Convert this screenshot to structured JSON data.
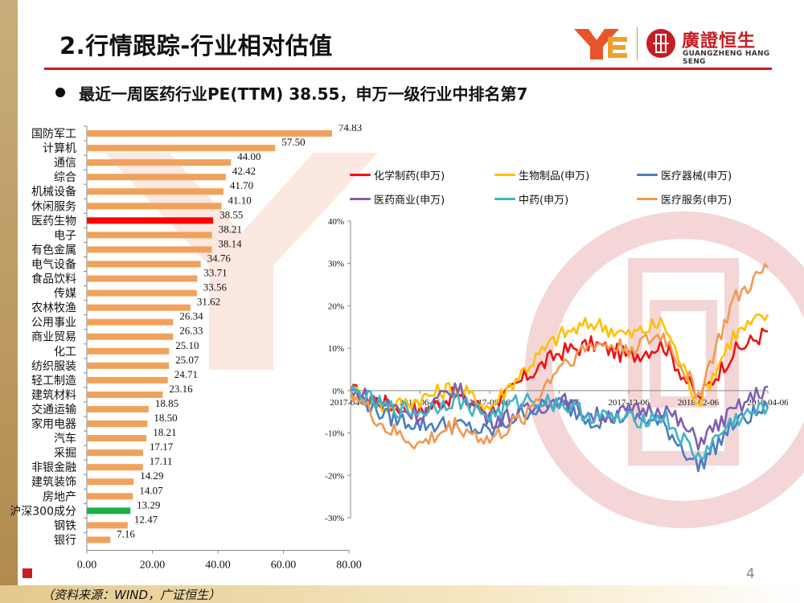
{
  "header": {
    "title": "2.行情跟踪-行业相对估值",
    "brand_cn": "廣證恒生",
    "brand_en": "GUANGZHENG HANG SENG",
    "subtitle": "最近一周医药行业PE(TTM) 38.55，申万一级行业中排名第7"
  },
  "footer": {
    "source": "（资料来源：WIND，广证恒生）",
    "page_number": "4"
  },
  "colors": {
    "accent_red": "#c81c23",
    "bar_default": "#f0a25c",
    "bar_highlight": "#ff0000",
    "bar_benchmark": "#1fae48"
  },
  "chart_data": [
    {
      "type": "bar",
      "orientation": "horizontal",
      "categories": [
        "国防军工",
        "计算机",
        "通信",
        "综合",
        "机械设备",
        "休闲服务",
        "医药生物",
        "电子",
        "有色金属",
        "电气设备",
        "食品饮料",
        "传媒",
        "农林牧渔",
        "公用事业",
        "商业贸易",
        "化工",
        "纺织服装",
        "轻工制造",
        "建筑材料",
        "交通运输",
        "家用电器",
        "汽车",
        "采掘",
        "非银金融",
        "建筑装饰",
        "房地产",
        "沪深300成分",
        "钢铁",
        "银行"
      ],
      "values": [
        74.83,
        57.5,
        44.0,
        42.42,
        41.7,
        41.1,
        38.55,
        38.21,
        38.14,
        34.76,
        33.71,
        33.56,
        31.62,
        26.34,
        26.33,
        25.1,
        25.07,
        24.71,
        23.16,
        18.85,
        18.5,
        18.21,
        17.17,
        17.11,
        14.29,
        14.07,
        13.29,
        12.47,
        7.16
      ],
      "value_labels": [
        "74.83",
        "57.50",
        "44.00",
        "42.42",
        "41.70",
        "41.10",
        "38.55",
        "38.21",
        "38.14",
        "34.76",
        "33.71",
        "33.56",
        "31.62",
        "26.34",
        "26.33",
        "25.10",
        "25.07",
        "24.71",
        "23.16",
        "18.85",
        "18.50",
        "18.21",
        "17.17",
        "17.11",
        "14.29",
        "14.07",
        "13.29",
        "12.47",
        "7.16"
      ],
      "highlight": {
        "医药生物": "red",
        "沪深300成分": "green"
      },
      "xlim": [
        0,
        80
      ],
      "xticks": [
        "0.00",
        "20.00",
        "40.00",
        "60.00",
        "80.00"
      ],
      "title": "",
      "xlabel": "",
      "ylabel": ""
    },
    {
      "type": "line",
      "title": "",
      "yticks": [
        "40%",
        "30%",
        "20%",
        "10%",
        "0%",
        "-10%",
        "-20%",
        "-30%"
      ],
      "ylim": [
        -30,
        40
      ],
      "xticks": [
        "2017-04-06",
        "2017-06-06",
        "2017-08-06",
        "2017-10-06",
        "2017-12-06",
        "2018-02-06",
        "2018-04-06"
      ],
      "x": [
        "2017-04-06",
        "2017-05-06",
        "2017-06-06",
        "2017-07-06",
        "2017-08-06",
        "2017-09-06",
        "2017-10-06",
        "2017-11-06",
        "2017-12-06",
        "2018-01-06",
        "2018-02-06",
        "2018-03-06",
        "2018-04-06"
      ],
      "series": [
        {
          "name": "化学制药(申万)",
          "color": "#ee1111",
          "values": [
            0,
            -3,
            -5,
            -1,
            -5,
            3,
            9,
            11,
            8,
            11,
            -2,
            9,
            14
          ]
        },
        {
          "name": "生物制品(申万)",
          "color": "#ffc000",
          "values": [
            0,
            -4,
            -2,
            1,
            -4,
            5,
            13,
            16,
            13,
            16,
            -3,
            13,
            18
          ]
        },
        {
          "name": "医疗器械(申万)",
          "color": "#4a7dc4",
          "values": [
            0,
            -6,
            -8,
            -8,
            -10,
            -5,
            -3,
            -7,
            -6,
            -8,
            -18,
            -8,
            -4
          ]
        },
        {
          "name": "医药商业(申万)",
          "color": "#7f5fb0",
          "values": [
            0,
            -3,
            -6,
            1,
            -7,
            -5,
            -2,
            -6,
            -5,
            -4,
            -12,
            -5,
            1
          ]
        },
        {
          "name": "中药(申万)",
          "color": "#3fb4c8",
          "values": [
            0,
            -4,
            -5,
            -2,
            -6,
            -2,
            -3,
            -6,
            -7,
            -6,
            -16,
            -7,
            -4
          ]
        },
        {
          "name": "医疗服务(申万)",
          "color": "#f09a50",
          "values": [
            0,
            -9,
            -13,
            -8,
            -12,
            -6,
            6,
            11,
            10,
            13,
            -1,
            21,
            29
          ]
        }
      ]
    }
  ]
}
